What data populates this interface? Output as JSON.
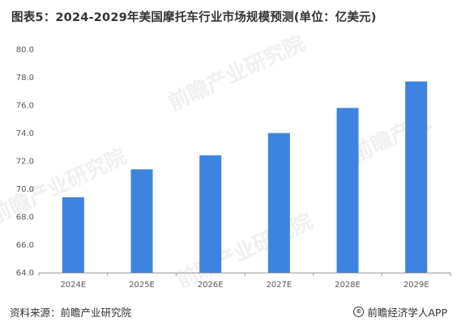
{
  "title": "图表5：2024-2029年美国摩托车行业市场规模预测(单位：亿美元)",
  "footer": {
    "source": "资料来源：前瞻产业研究院",
    "brand": "前瞻经济学人APP"
  },
  "colors": {
    "bar": "#3c84e0",
    "axis": "#999999"
  },
  "chart_data": {
    "type": "bar",
    "title": "图表5：2024-2029年美国摩托车行业市场规模预测(单位：亿美元)",
    "categories": [
      "2024E",
      "2025E",
      "2026E",
      "2027E",
      "2028E",
      "2029E"
    ],
    "values": [
      69.4,
      71.4,
      72.4,
      74.0,
      75.8,
      77.7
    ],
    "ylim": [
      64.0,
      80.0
    ],
    "yticks": [
      "64.0",
      "66.0",
      "68.0",
      "70.0",
      "72.0",
      "74.0",
      "76.0",
      "78.0",
      "80.0"
    ],
    "grid": false,
    "xlabel": "",
    "ylabel": ""
  }
}
